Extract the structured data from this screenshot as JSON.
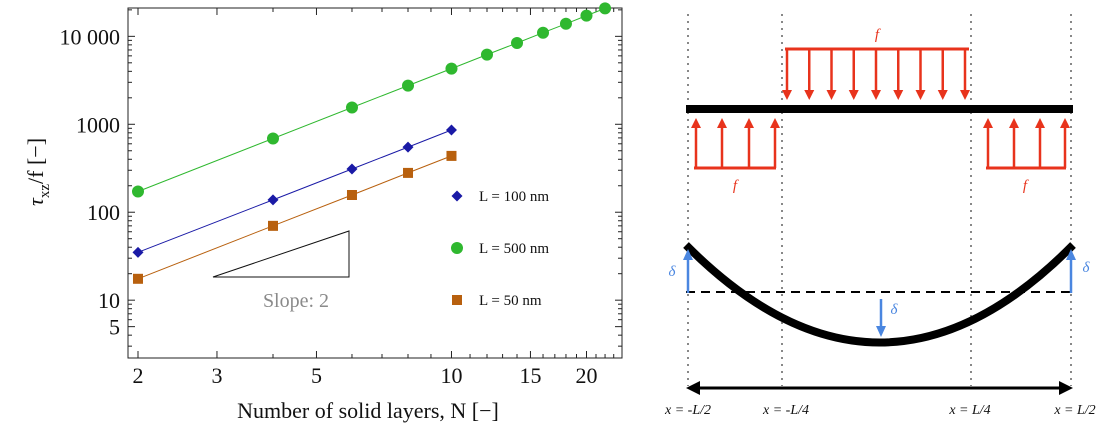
{
  "chart_data": {
    "type": "scatter",
    "scale": {
      "x": "log",
      "y": "log"
    },
    "xlim": [
      1.9,
      24
    ],
    "ylim": [
      2.2,
      21000
    ],
    "xlabel": "Number of solid layers, N [−]",
    "ylabel_main": "τ",
    "ylabel_sub": "xz",
    "ylabel_rest": "/f [−]",
    "x_ticks": [
      {
        "value": 2,
        "label": "2"
      },
      {
        "value": 3,
        "label": "3"
      },
      {
        "value": 5,
        "label": "5"
      },
      {
        "value": 10,
        "label": "10"
      },
      {
        "value": 15,
        "label": "15"
      },
      {
        "value": 20,
        "label": "20"
      }
    ],
    "y_ticks": [
      {
        "value": 5,
        "label": "5"
      },
      {
        "value": 10,
        "label": "10"
      },
      {
        "value": 100,
        "label": "100"
      },
      {
        "value": 1000,
        "label": "1000"
      },
      {
        "value": 10000,
        "label": "10 000"
      }
    ],
    "series": [
      {
        "name": "L = 100 nm",
        "marker": "diamond",
        "color": "#1a1aa6",
        "x": [
          2,
          4,
          6,
          8,
          10
        ],
        "y": [
          35,
          138,
          310,
          550,
          860
        ]
      },
      {
        "name": "L = 500 nm",
        "marker": "circle",
        "color": "#2fb82f",
        "x": [
          2,
          4,
          6,
          8,
          10,
          12,
          14,
          16,
          18,
          20,
          22
        ],
        "y": [
          172,
          690,
          1550,
          2750,
          4300,
          6200,
          8400,
          11000,
          13900,
          17200,
          20800
        ]
      },
      {
        "name": "L = 50 nm",
        "marker": "square",
        "color": "#b8600e",
        "x": [
          2,
          4,
          6,
          8,
          10
        ],
        "y": [
          17.5,
          70,
          157,
          280,
          437
        ]
      }
    ],
    "slope_annotation": {
      "label": "Slope: 2"
    }
  },
  "diagram": {
    "force_label": "f",
    "delta_label": "δ",
    "x_positions": [
      "x = -L/2",
      "x = -L/4",
      "x = L/4",
      "x = L/2"
    ],
    "colors": {
      "force": "#e8331c",
      "deflection": "#4a86e0",
      "beam": "#000000"
    }
  }
}
